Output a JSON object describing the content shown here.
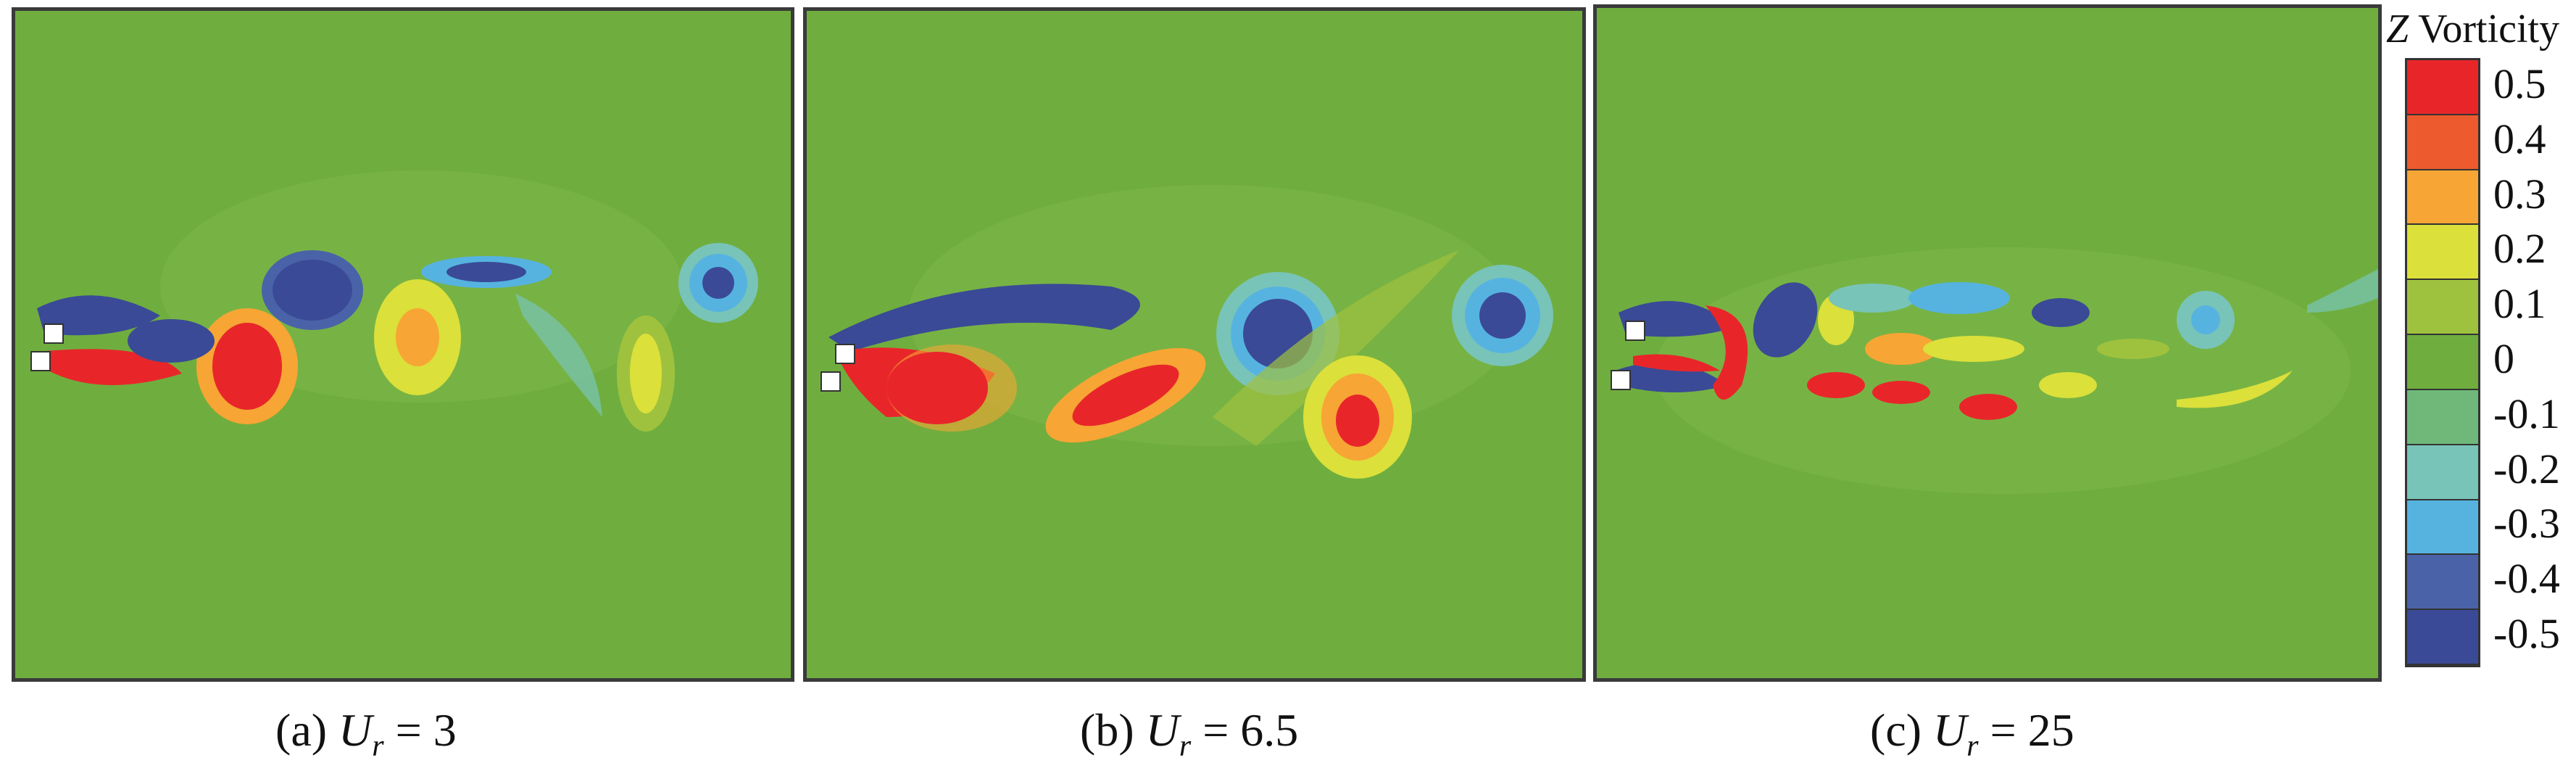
{
  "panels": [
    {
      "label_prefix": "(a) ",
      "symbol": "U",
      "subscript": "r",
      "label_suffix": " = 3"
    },
    {
      "label_prefix": "(b) ",
      "symbol": "U",
      "subscript": "r",
      "label_suffix": " = 6.5"
    },
    {
      "label_prefix": "(c) ",
      "symbol": "U",
      "subscript": "r",
      "label_suffix": " = 25"
    }
  ],
  "colorbar": {
    "title_symbol": "Z",
    "title_text": " Vorticity",
    "levels": [
      "0.5",
      "0.4",
      "0.3",
      "0.2",
      "0.1",
      "0",
      "-0.1",
      "-0.2",
      "-0.3",
      "-0.4",
      "-0.5"
    ],
    "colors": [
      "#e8262a",
      "#ec5a2e",
      "#f7a534",
      "#dbe03a",
      "#9fc23e",
      "#6fae3e",
      "#6fb87a",
      "#79c4b8",
      "#56b3e0",
      "#4a63a8",
      "#3a4a96"
    ]
  },
  "colors": {
    "background_field": "#6fae3e",
    "positive_strong": "#e8262a",
    "negative_strong": "#3a4a96"
  }
}
